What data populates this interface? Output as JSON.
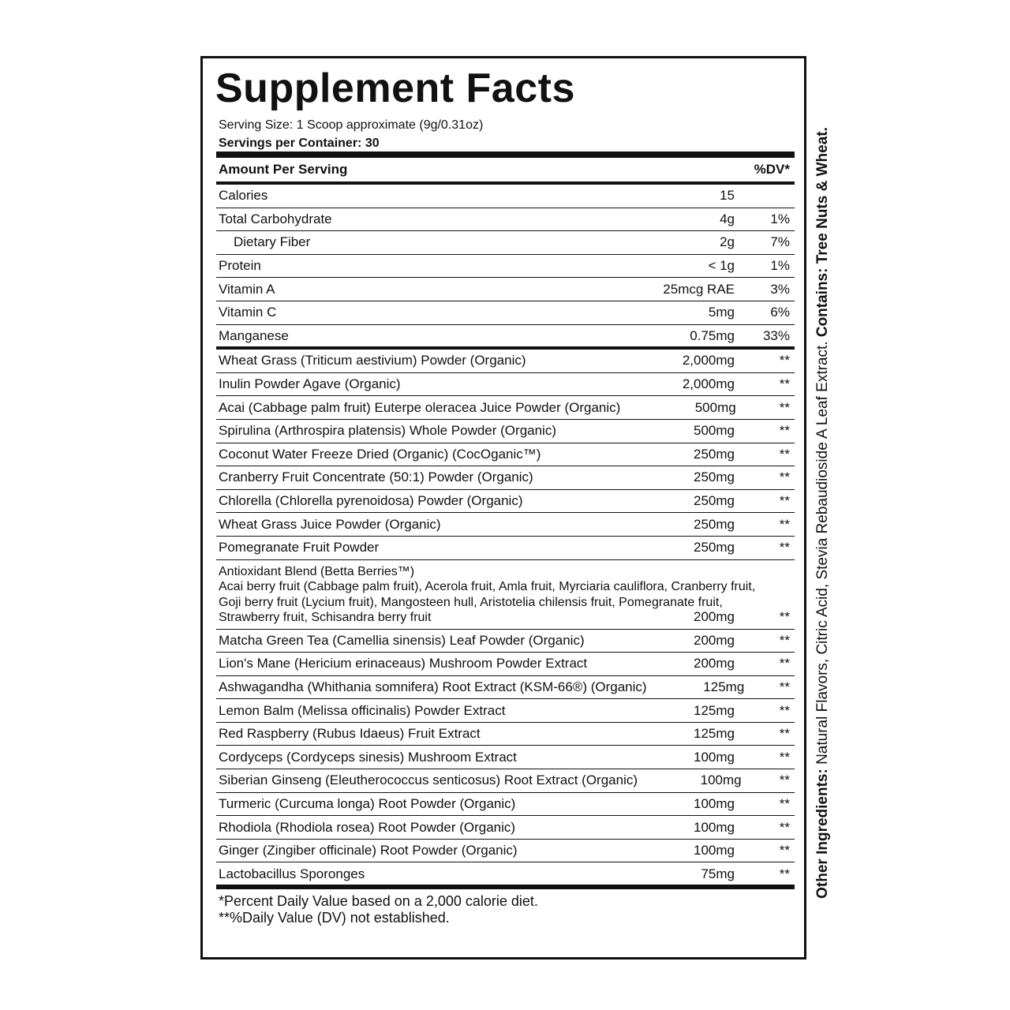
{
  "title": "Supplement Facts",
  "serving_size": "Serving Size: 1 Scoop approximate (9g/0.31oz)",
  "servings_per_container": "Servings per Container: 30",
  "header": {
    "amount": "Amount Per Serving",
    "dv": "%DV*"
  },
  "nutrients": [
    {
      "name": "Calories",
      "amount": "15",
      "dv": ""
    },
    {
      "name": "Total Carbohydrate",
      "amount": "4g",
      "dv": "1%"
    },
    {
      "name": "Dietary Fiber",
      "amount": "2g",
      "dv": "7%"
    },
    {
      "name": "Protein",
      "amount": "< 1g",
      "dv": "1%"
    },
    {
      "name": "Vitamin A",
      "amount": "25mcg RAE",
      "dv": "3%"
    },
    {
      "name": "Vitamin C",
      "amount": "5mg",
      "dv": "6%"
    },
    {
      "name": "Manganese",
      "amount": "0.75mg",
      "dv": "33%"
    }
  ],
  "ingredients_a": [
    {
      "name": "Wheat Grass (Triticum aestivium) Powder (Organic)",
      "amount": "2,000mg",
      "dv": "**"
    },
    {
      "name": "Inulin Powder Agave (Organic)",
      "amount": "2,000mg",
      "dv": "**"
    },
    {
      "name": "Acai (Cabbage palm fruit) Euterpe oleracea Juice Powder (Organic)",
      "amount": "500mg",
      "dv": "**"
    },
    {
      "name": "Spirulina (Arthrospira platensis) Whole Powder (Organic)",
      "amount": "500mg",
      "dv": "**"
    },
    {
      "name": "Coconut Water Freeze Dried (Organic) (CocOganic™)",
      "amount": "250mg",
      "dv": "**"
    },
    {
      "name": "Cranberry Fruit Concentrate (50:1) Powder (Organic)",
      "amount": "250mg",
      "dv": "**"
    },
    {
      "name": "Chlorella (Chlorella pyrenoidosa) Powder (Organic)",
      "amount": "250mg",
      "dv": "**"
    },
    {
      "name": "Wheat Grass Juice Powder (Organic)",
      "amount": "250mg",
      "dv": "**"
    },
    {
      "name": "Pomegranate Fruit Powder",
      "amount": "250mg",
      "dv": "**"
    }
  ],
  "blend": {
    "title": "Antioxidant Blend (Betta Berries™)",
    "line1": "Acai berry fruit (Cabbage palm fruit), Acerola fruit, Amla fruit, Myrciaria cauliflora, Cranberry fruit,",
    "line2": "Goji berry fruit (Lycium fruit), Mangosteen hull, Aristotelia chilensis fruit, Pomegranate fruit,",
    "line3": "Strawberry fruit, Schisandra berry fruit",
    "amount": "200mg",
    "dv": "**"
  },
  "ingredients_b": [
    {
      "name": "Matcha Green Tea (Camellia sinensis) Leaf Powder (Organic)",
      "amount": "200mg",
      "dv": "**"
    },
    {
      "name": "Lion's Mane (Hericium erinaceaus) Mushroom Powder Extract",
      "amount": "200mg",
      "dv": "**"
    },
    {
      "name": "Ashwagandha (Whithania somnifera) Root Extract (KSM-66®) (Organic)",
      "amount": "125mg",
      "dv": "**"
    },
    {
      "name": "Lemon Balm (Melissa officinalis) Powder Extract",
      "amount": "125mg",
      "dv": "**"
    },
    {
      "name": "Red Raspberry (Rubus Idaeus) Fruit Extract",
      "amount": "125mg",
      "dv": "**"
    },
    {
      "name": "Cordyceps (Cordyceps sinesis) Mushroom Extract",
      "amount": "100mg",
      "dv": "**"
    },
    {
      "name": "Siberian Ginseng (Eleutherococcus senticosus) Root Extract (Organic)",
      "amount": "100mg",
      "dv": "**"
    },
    {
      "name": "Turmeric (Curcuma longa) Root Powder (Organic)",
      "amount": "100mg",
      "dv": "**"
    },
    {
      "name": "Rhodiola (Rhodiola rosea) Root Powder (Organic)",
      "amount": "100mg",
      "dv": "**"
    },
    {
      "name": "Ginger (Zingiber officinale) Root Powder (Organic)",
      "amount": "100mg",
      "dv": "**"
    },
    {
      "name": "Lactobacillus Sporonges",
      "amount": "75mg",
      "dv": "**"
    }
  ],
  "footnotes": [
    "*Percent Daily Value based on a 2,000 calorie diet.",
    "**%Daily Value (DV) not established."
  ],
  "other_ingredients": {
    "label": "Other Ingredients:",
    "text": " Natural Flavors, Citric Acid, Stevia Rebaudioside A Leaf Extract. ",
    "contains_label": "Contains:",
    "contains": " Tree Nuts & Wheat."
  }
}
